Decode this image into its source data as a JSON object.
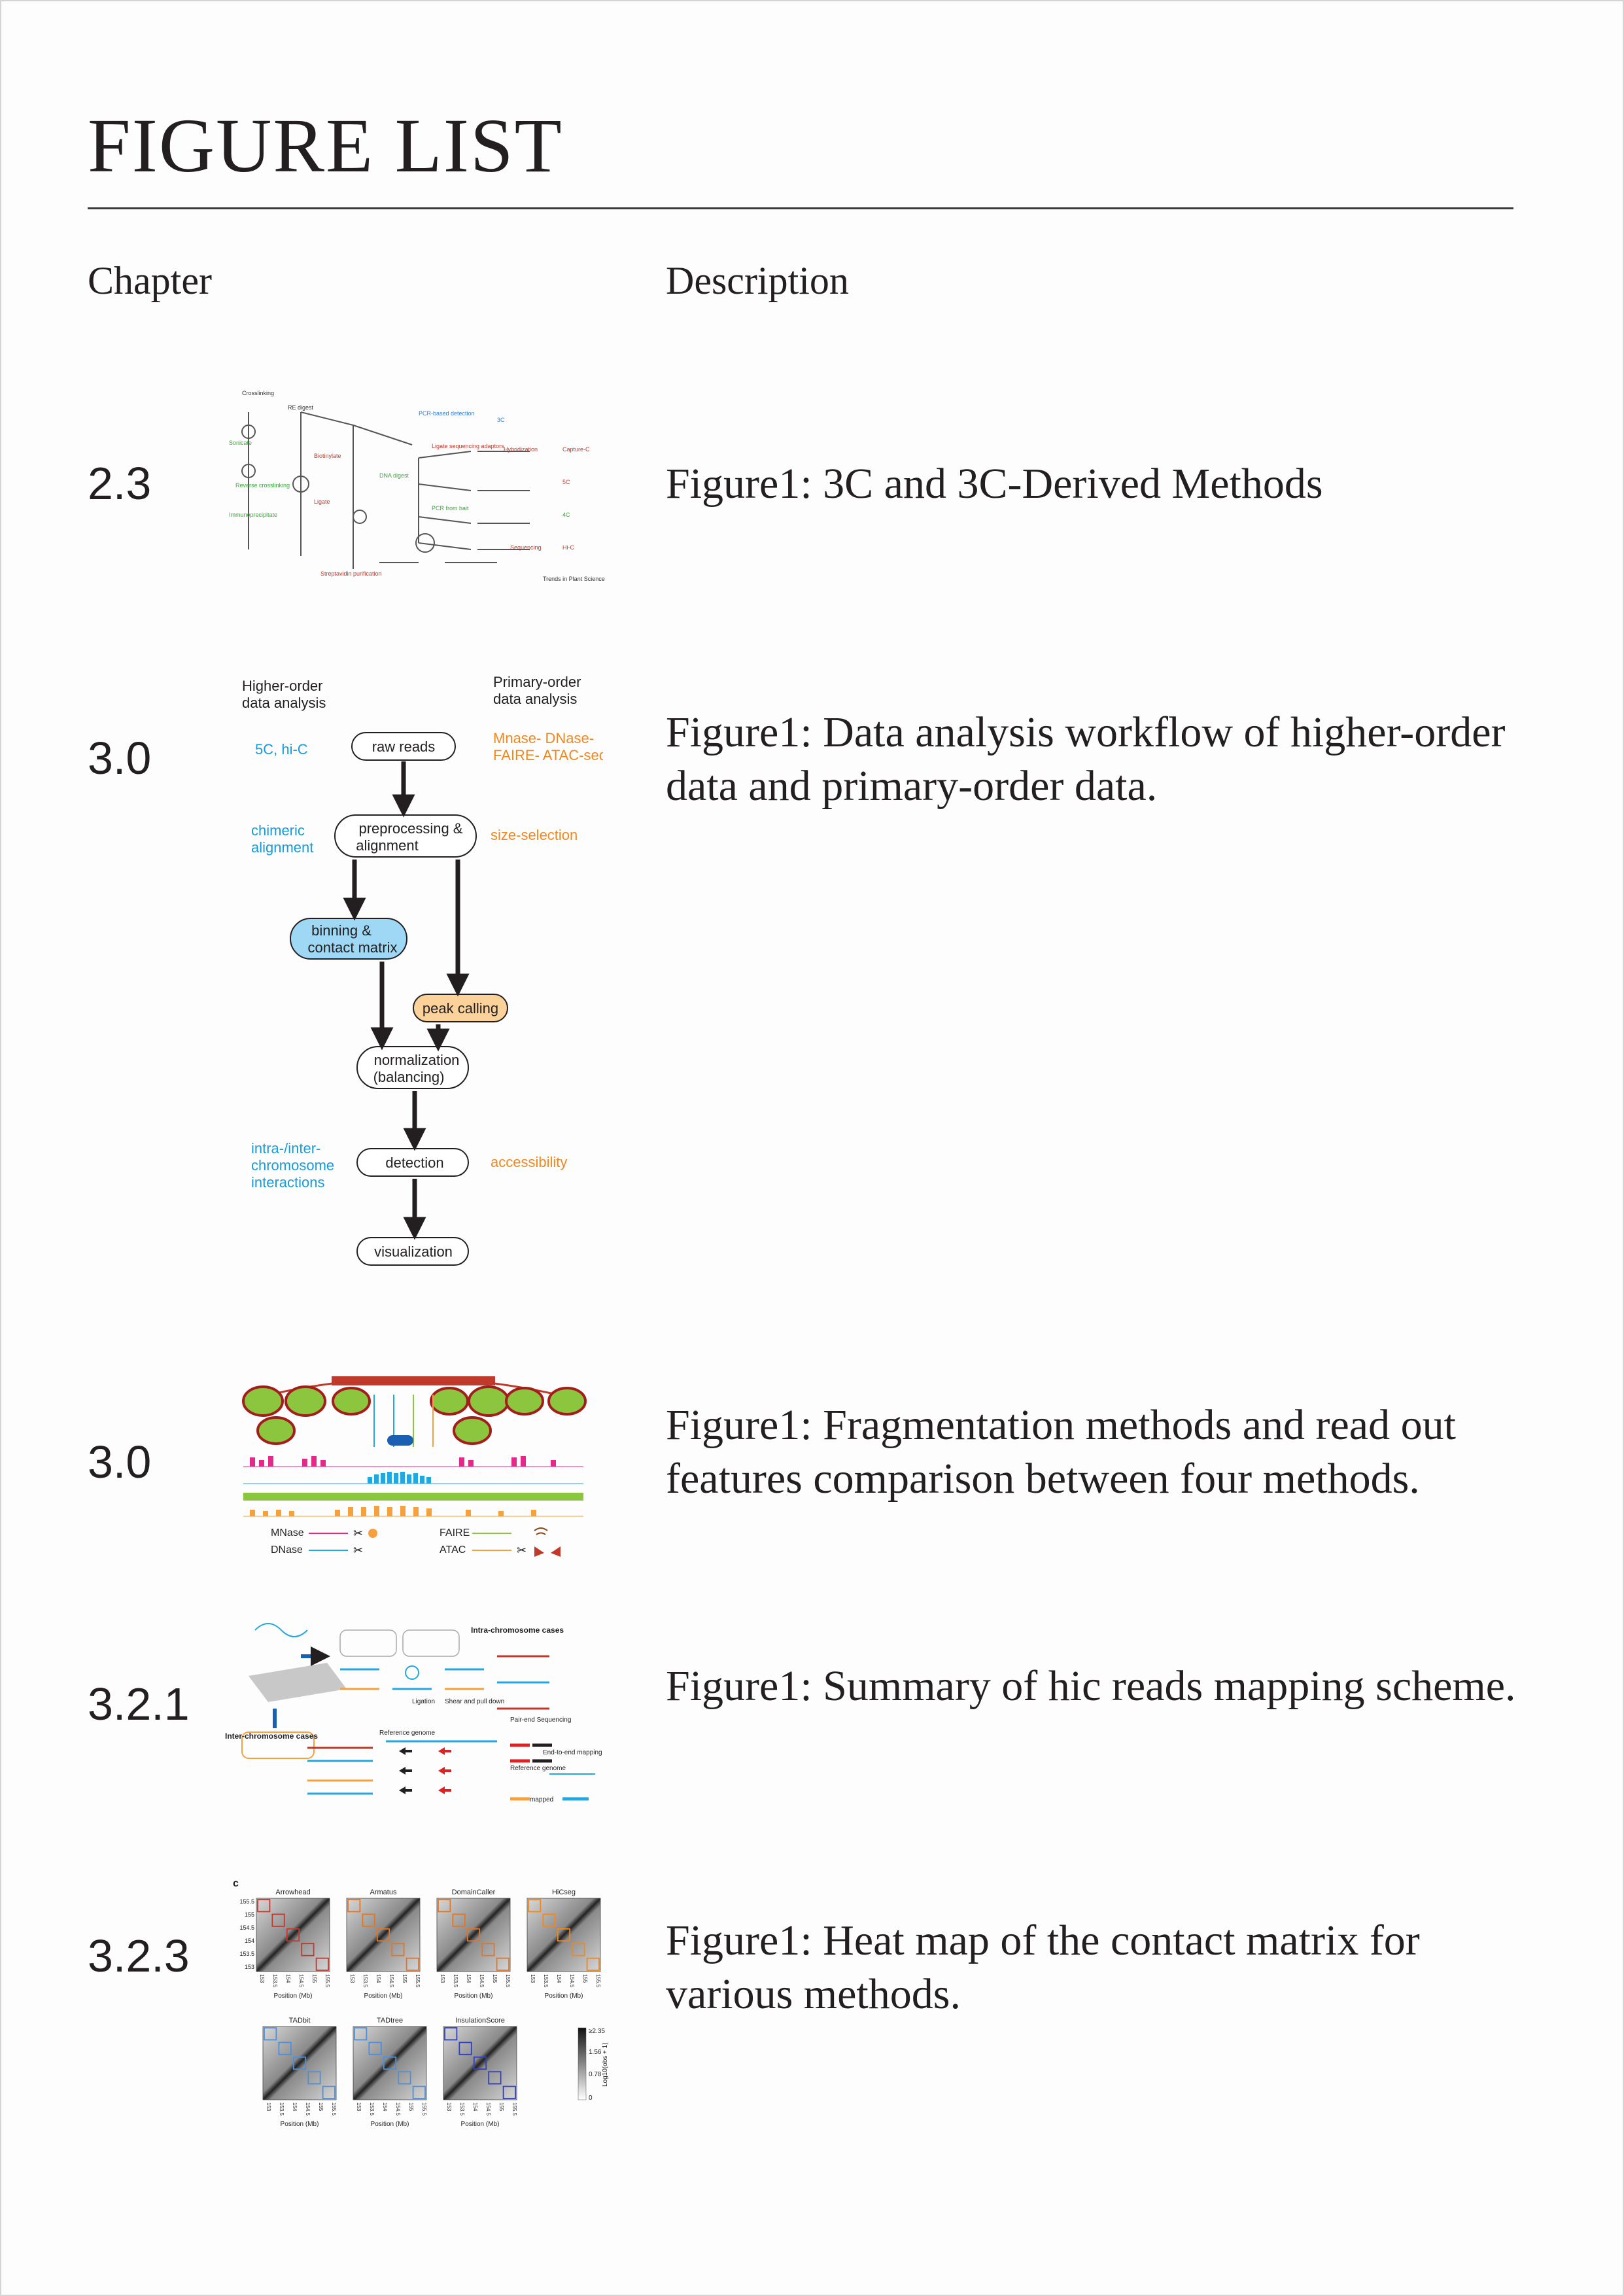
{
  "page": {
    "title": "FIGURE LIST",
    "col_chapter": "Chapter",
    "col_description": "Description"
  },
  "rows": [
    {
      "chapter": "2.3",
      "description": "Figure1: 3C and 3C-Derived Methods",
      "figure": {
        "credit": "Trends in Plant Science"
      }
    },
    {
      "chapter": "3.0",
      "description": "Figure1: Data analysis workflow of higher-order data and primary-order data.",
      "figure": {
        "left_heading_1": "Higher-order",
        "left_heading_2": "data analysis",
        "right_heading_1": "Primary-order",
        "right_heading_2": "data analysis",
        "left_note_1": "5C, hi-C",
        "left_note_2a": "chimeric",
        "left_note_2b": "alignment",
        "left_note_3a": "intra-/inter-",
        "left_note_3b": "chromosome",
        "left_note_3c": "interactions",
        "right_note_1a": "Mnase- DNase-",
        "right_note_1b": "FAIRE- ATAC-seq",
        "right_note_2": "size-selection",
        "right_note_3": "accessibility",
        "node_raw": "raw reads",
        "node_pre_1": "preprocessing &",
        "node_pre_2": "alignment",
        "node_bin_1": "binning &",
        "node_bin_2": "contact matrix",
        "node_peak": "peak calling",
        "node_norm_1": "normalization",
        "node_norm_2": "(balancing)",
        "node_detect": "detection",
        "node_vis": "visualization",
        "colors": {
          "higher": "#1a9ad6",
          "primary": "#f0881e",
          "bin_fill": "#9ed8f5",
          "peak_fill": "#fbd39a"
        }
      }
    },
    {
      "chapter": "3.0",
      "description": "Figure1: Fragmentation methods and read out features comparison between four methods.",
      "figure": {
        "method_1": "MNase",
        "method_2": "DNase",
        "method_3": "FAIRE",
        "method_4": "ATAC",
        "colors": {
          "mnase": "#e6288a",
          "dnase": "#22a8e0",
          "faire": "#8cc63f",
          "atac": "#f7a13d",
          "nucleosome": "#8cc63f"
        }
      }
    },
    {
      "chapter": "3.2.1",
      "description": "Figure1: Summary of hic reads mapping scheme.",
      "figure": {
        "label_intra": "Intra-chromosome cases",
        "label_inter": "Inter-chromosome cases",
        "label_ref_1": "Reference genome",
        "label_ref_2": "Reference genome",
        "label_ligation": "Ligation",
        "label_shear": "Shear and pull down",
        "label_pair": "Pair-end  Sequencing",
        "label_end": "End-to-end mapping",
        "label_mapped": "mapped"
      }
    },
    {
      "chapter": "3.2.3",
      "description": "Figure1:  Heat map of the contact matrix for various methods.",
      "figure": {
        "panel_letter": "c",
        "methods_top": [
          "Arrowhead",
          "Armatus",
          "DomainCaller",
          "HiCseg"
        ],
        "methods_bottom": [
          "TADbit",
          "TADtree",
          "InsulationScore"
        ],
        "axis_label": "Position (Mb)",
        "y_ticks": [
          "155.5",
          "155",
          "154.5",
          "154",
          "153.5",
          "153"
        ],
        "x_ticks": [
          "153",
          "153.5",
          "154",
          "154.5",
          "155",
          "155.5"
        ],
        "colorbar_ticks": [
          "≥2.35",
          "1.56",
          "0.78",
          "0"
        ],
        "colorbar_label": "Log10(obs + 1)"
      }
    }
  ]
}
